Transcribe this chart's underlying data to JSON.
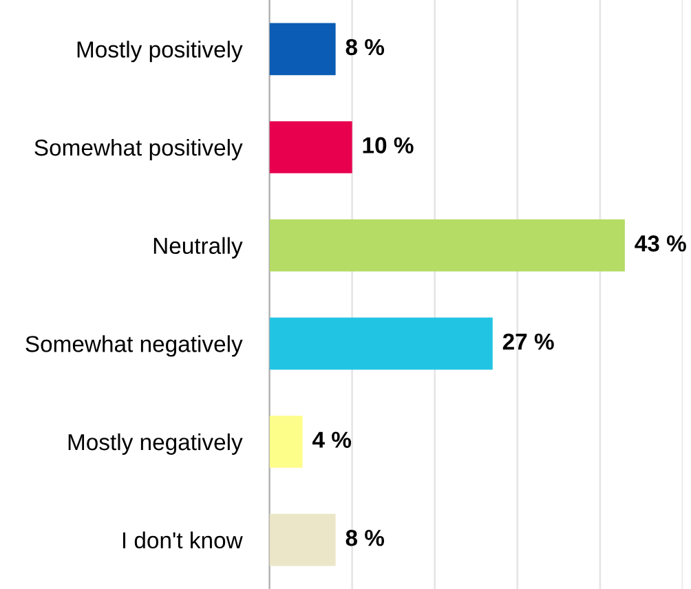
{
  "chart_data": {
    "type": "bar",
    "orientation": "horizontal",
    "categories": [
      "Mostly positively",
      "Somewhat positively",
      "Neutrally",
      "Somewhat negatively",
      "Mostly negatively",
      "I don't know"
    ],
    "values": [
      8,
      10,
      43,
      27,
      4,
      8
    ],
    "colors": [
      "#0a5cb4",
      "#e8004f",
      "#b5dc64",
      "#22c4e4",
      "#fdfd8a",
      "#ece6c8"
    ],
    "value_labels": [
      "8 %",
      "10 %",
      "43 %",
      "27 %",
      "4 %",
      "8 %"
    ],
    "xlim": [
      0,
      50
    ],
    "xticks": [
      {
        "value": 10,
        "label": null
      },
      {
        "value": 20,
        "label": null
      },
      {
        "value": 30,
        "label": null
      },
      {
        "value": 40,
        "label": null
      },
      {
        "value": 50,
        "label": null
      }
    ],
    "grid": "x",
    "tick_labels": "y"
  }
}
